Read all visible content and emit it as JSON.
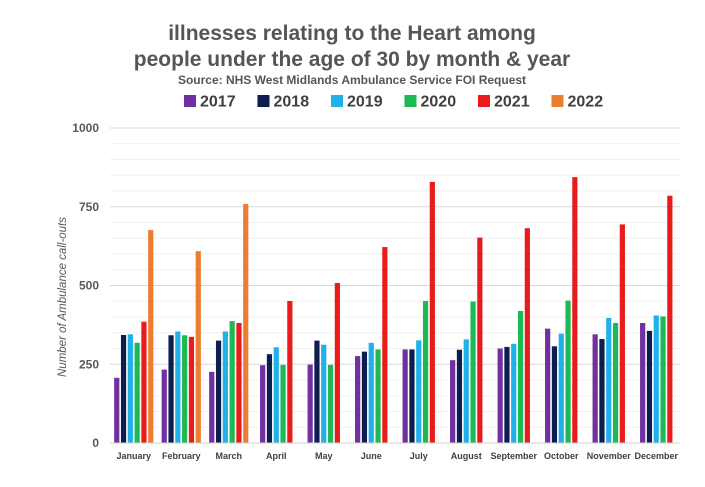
{
  "chart_data": {
    "type": "bar",
    "title_line1": "illnesses relating to the Heart among",
    "title_line2": "people under the age of 30 by month & year",
    "subtitle": "Source: NHS West Midlands Ambulance Service FOI Request",
    "xlabel": "",
    "ylabel": "Number of Ambulance call-outs",
    "ylim": [
      0,
      1000
    ],
    "yticks": [
      0,
      250,
      500,
      750,
      1000
    ],
    "grid": true,
    "legend_position": "top",
    "categories": [
      "January",
      "February",
      "March",
      "April",
      "May",
      "June",
      "July",
      "August",
      "September",
      "October",
      "November",
      "December"
    ],
    "series": [
      {
        "name": "2017",
        "color": "#7030A0",
        "values": [
          207,
          233,
          226,
          247,
          249,
          276,
          297,
          263,
          300,
          363,
          345,
          381
        ]
      },
      {
        "name": "2018",
        "color": "#0C1E4E",
        "values": [
          343,
          342,
          325,
          282,
          325,
          290,
          297,
          296,
          305,
          307,
          330,
          356
        ]
      },
      {
        "name": "2019",
        "color": "#1FB1E7",
        "values": [
          345,
          354,
          354,
          304,
          312,
          318,
          326,
          329,
          315,
          347,
          397,
          405
        ]
      },
      {
        "name": "2020",
        "color": "#1DB954",
        "values": [
          318,
          342,
          387,
          248,
          248,
          297,
          451,
          449,
          419,
          452,
          381,
          402
        ]
      },
      {
        "name": "2021",
        "color": "#E81C1C",
        "values": [
          385,
          337,
          381,
          451,
          508,
          622,
          829,
          652,
          682,
          844,
          694,
          785
        ]
      },
      {
        "name": "2022",
        "color": "#ED7D31",
        "values": [
          676,
          609,
          759,
          null,
          null,
          null,
          null,
          null,
          null,
          null,
          null,
          null
        ]
      }
    ]
  }
}
